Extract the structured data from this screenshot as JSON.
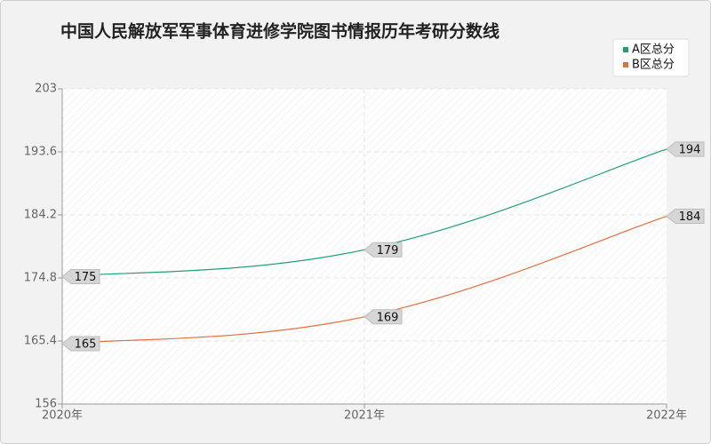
{
  "chart_data": {
    "type": "line",
    "title": "中国人民解放军军事体育进修学院图书情报历年考研分数线",
    "categories": [
      "2020年",
      "2021年",
      "2022年"
    ],
    "series": [
      {
        "name": "A区总分",
        "color": "#1f9e78",
        "values": [
          175,
          179,
          194
        ]
      },
      {
        "name": "B区总分",
        "color": "#e0703f",
        "values": [
          165,
          169,
          184
        ]
      }
    ],
    "ylim": [
      156,
      203
    ],
    "yticks": [
      156,
      165.4,
      174.8,
      184.2,
      193.6,
      203
    ],
    "grid": true,
    "legend": "top-right"
  }
}
